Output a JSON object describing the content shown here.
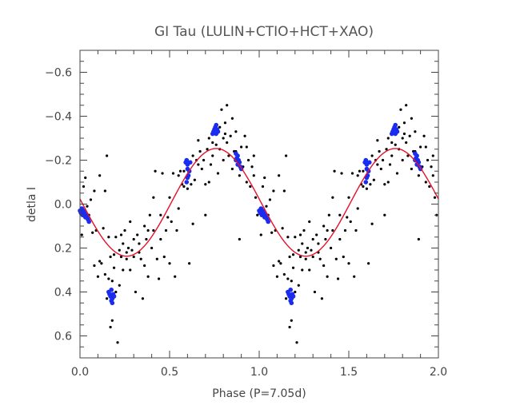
{
  "chart_data": {
    "type": "scatter",
    "title": "GI Tau (LULIN+CTIO+HCT+XAO)",
    "xlabel": "Phase (P=7.05d)",
    "ylabel": "detla I",
    "xlim": [
      0.0,
      2.0
    ],
    "ylim": [
      0.7,
      -0.7
    ],
    "y_inverted": true,
    "x_ticks": [
      0.0,
      0.5,
      1.0,
      1.5,
      2.0
    ],
    "x_tick_labels": [
      "0.0",
      "0.5",
      "1.0",
      "1.5",
      "2.0"
    ],
    "y_ticks": [
      -0.6,
      -0.4,
      -0.2,
      0.0,
      0.2,
      0.4,
      0.6
    ],
    "y_tick_labels": [
      "−0.6",
      "−0.4",
      "−0.2",
      "0.0",
      "0.2",
      "0.4",
      "0.6"
    ],
    "x_minor_step": 0.1,
    "y_minor_step": 0.05,
    "grid": false,
    "colors": {
      "black_points": "#000000",
      "blue_points": "#1a2cf0",
      "fit": "#e8102a",
      "frame": "#444444"
    },
    "series": [
      {
        "style": "black-dots",
        "points": [
          [
            0.01,
            0.14
          ],
          [
            0.02,
            -0.08
          ],
          [
            0.03,
            -0.12
          ],
          [
            0.04,
            0.01
          ],
          [
            0.05,
            0.05
          ],
          [
            0.06,
            -0.02
          ],
          [
            0.07,
            0.13
          ],
          [
            0.08,
            0.28
          ],
          [
            0.08,
            -0.06
          ],
          [
            0.09,
            0.12
          ],
          [
            0.1,
            0.33
          ],
          [
            0.11,
            0.26
          ],
          [
            0.11,
            -0.13
          ],
          [
            0.12,
            0.27
          ],
          [
            0.13,
            0.11
          ],
          [
            0.14,
            0.32
          ],
          [
            0.14,
            -0.06
          ],
          [
            0.15,
            -0.22
          ],
          [
            0.15,
            0.43
          ],
          [
            0.16,
            0.34
          ],
          [
            0.16,
            0.15
          ],
          [
            0.17,
            0.56
          ],
          [
            0.17,
            0.24
          ],
          [
            0.18,
            0.53
          ],
          [
            0.18,
            0.35
          ],
          [
            0.19,
            0.29
          ],
          [
            0.2,
            0.4
          ],
          [
            0.2,
            0.15
          ],
          [
            0.21,
            0.63
          ],
          [
            0.22,
            0.37
          ],
          [
            0.22,
            0.21
          ],
          [
            0.23,
            0.14
          ],
          [
            0.23,
            0.24
          ],
          [
            0.24,
            0.3
          ],
          [
            0.25,
            0.12
          ],
          [
            0.26,
            0.22
          ],
          [
            0.26,
            0.25
          ],
          [
            0.27,
            0.2
          ],
          [
            0.28,
            0.08
          ],
          [
            0.29,
            0.21
          ],
          [
            0.3,
            0.24
          ],
          [
            0.31,
            0.4
          ],
          [
            0.32,
            0.14
          ],
          [
            0.33,
            0.18
          ],
          [
            0.34,
            0.25
          ],
          [
            0.35,
            0.43
          ],
          [
            0.36,
            0.1
          ],
          [
            0.37,
            0.16
          ],
          [
            0.38,
            0.33
          ],
          [
            0.39,
            0.05
          ],
          [
            0.4,
            0.2
          ],
          [
            0.41,
            0.12
          ],
          [
            0.42,
            -0.15
          ],
          [
            0.43,
            0.25
          ],
          [
            0.44,
            0.34
          ],
          [
            0.45,
            0.16
          ],
          [
            0.46,
            -0.14
          ],
          [
            0.47,
            0.24
          ],
          [
            0.48,
            0.12
          ],
          [
            0.49,
            0.06
          ],
          [
            0.5,
            0.27
          ],
          [
            0.51,
            0.08
          ],
          [
            0.52,
            -0.14
          ],
          [
            0.53,
            0.33
          ],
          [
            0.54,
            0.12
          ],
          [
            0.55,
            -0.13
          ],
          [
            0.56,
            -0.15
          ],
          [
            0.57,
            -0.09
          ],
          [
            0.58,
            -0.15
          ],
          [
            0.6,
            -0.07
          ],
          [
            0.6,
            -0.2
          ],
          [
            0.61,
            0.27
          ],
          [
            0.62,
            -0.09
          ],
          [
            0.63,
            0.09
          ],
          [
            0.64,
            -0.11
          ],
          [
            0.65,
            -0.2
          ],
          [
            0.66,
            -0.29
          ],
          [
            0.67,
            -0.24
          ],
          [
            0.68,
            -0.16
          ],
          [
            0.69,
            -0.2
          ],
          [
            0.7,
            -0.09
          ],
          [
            0.71,
            -0.25
          ],
          [
            0.72,
            -0.3
          ],
          [
            0.73,
            -0.18
          ],
          [
            0.74,
            -0.22
          ],
          [
            0.75,
            -0.35
          ],
          [
            0.76,
            -0.27
          ],
          [
            0.77,
            -0.14
          ],
          [
            0.78,
            -0.25
          ],
          [
            0.79,
            -0.43
          ],
          [
            0.8,
            -0.3
          ],
          [
            0.8,
            -0.2
          ],
          [
            0.81,
            -0.37
          ],
          [
            0.81,
            -0.32
          ],
          [
            0.82,
            -0.28
          ],
          [
            0.83,
            -0.22
          ],
          [
            0.84,
            -0.31
          ],
          [
            0.85,
            -0.39
          ],
          [
            0.86,
            -0.24
          ],
          [
            0.87,
            -0.33
          ],
          [
            0.88,
            -0.19
          ],
          [
            0.89,
            -0.13
          ],
          [
            0.9,
            -0.26
          ],
          [
            0.91,
            -0.17
          ],
          [
            0.92,
            -0.31
          ],
          [
            0.93,
            -0.1
          ],
          [
            0.94,
            -0.2
          ],
          [
            0.95,
            -0.08
          ],
          [
            0.96,
            -0.17
          ],
          [
            0.97,
            -0.13
          ],
          [
            0.98,
            -0.03
          ],
          [
            0.99,
            0.05
          ],
          [
            0.89,
            0.16
          ],
          [
            0.85,
            -0.16
          ],
          [
            0.93,
            -0.26
          ],
          [
            0.7,
            0.05
          ],
          [
            0.72,
            -0.1
          ],
          [
            0.82,
            -0.45
          ],
          [
            0.78,
            -0.35
          ],
          [
            0.63,
            -0.22
          ],
          [
            0.5,
            -0.03
          ],
          [
            0.45,
            0.05
          ],
          [
            0.38,
            0.12
          ],
          [
            0.33,
            0.22
          ],
          [
            0.28,
            0.3
          ],
          [
            0.19,
            0.23
          ],
          [
            0.24,
            0.18
          ],
          [
            0.3,
            0.16
          ],
          [
            0.36,
            0.28
          ],
          [
            0.41,
            -0.03
          ],
          [
            0.55,
            0.02
          ],
          [
            0.58,
            -0.08
          ],
          [
            0.66,
            -0.18
          ],
          [
            0.74,
            -0.28
          ],
          [
            0.87,
            -0.24
          ],
          [
            0.97,
            -0.22
          ]
        ]
      },
      {
        "style": "blue-dots",
        "points": [
          [
            0.0,
            0.03
          ],
          [
            0.005,
            0.04
          ],
          [
            0.01,
            0.02
          ],
          [
            0.015,
            0.05
          ],
          [
            0.02,
            0.03
          ],
          [
            0.025,
            0.04
          ],
          [
            0.03,
            0.06
          ],
          [
            0.035,
            0.05
          ],
          [
            0.04,
            0.06
          ],
          [
            0.045,
            0.07
          ],
          [
            0.05,
            0.08
          ],
          [
            0.16,
            0.4
          ],
          [
            0.165,
            0.41
          ],
          [
            0.17,
            0.42
          ],
          [
            0.175,
            0.44
          ],
          [
            0.18,
            0.45
          ],
          [
            0.18,
            0.43
          ],
          [
            0.185,
            0.41
          ],
          [
            0.19,
            0.42
          ],
          [
            0.175,
            0.39
          ],
          [
            0.59,
            -0.19
          ],
          [
            0.595,
            -0.2
          ],
          [
            0.6,
            -0.18
          ],
          [
            0.6,
            -0.16
          ],
          [
            0.605,
            -0.13
          ],
          [
            0.61,
            -0.15
          ],
          [
            0.595,
            -0.1
          ],
          [
            0.6,
            -0.12
          ],
          [
            0.615,
            -0.19
          ],
          [
            0.74,
            -0.32
          ],
          [
            0.745,
            -0.33
          ],
          [
            0.75,
            -0.34
          ],
          [
            0.755,
            -0.35
          ],
          [
            0.76,
            -0.36
          ],
          [
            0.765,
            -0.34
          ],
          [
            0.77,
            -0.33
          ],
          [
            0.76,
            -0.32
          ],
          [
            0.87,
            -0.23
          ],
          [
            0.875,
            -0.21
          ],
          [
            0.88,
            -0.22
          ],
          [
            0.885,
            -0.2
          ],
          [
            0.89,
            -0.19
          ],
          [
            0.895,
            -0.17
          ],
          [
            0.9,
            -0.16
          ],
          [
            0.88,
            -0.18
          ],
          [
            0.87,
            -0.2
          ]
        ]
      },
      {
        "style": "red-line",
        "model": "sinusoid",
        "mean": -0.008,
        "amplitude": 0.245,
        "phase_of_max_brightness": 0.76
      }
    ]
  }
}
